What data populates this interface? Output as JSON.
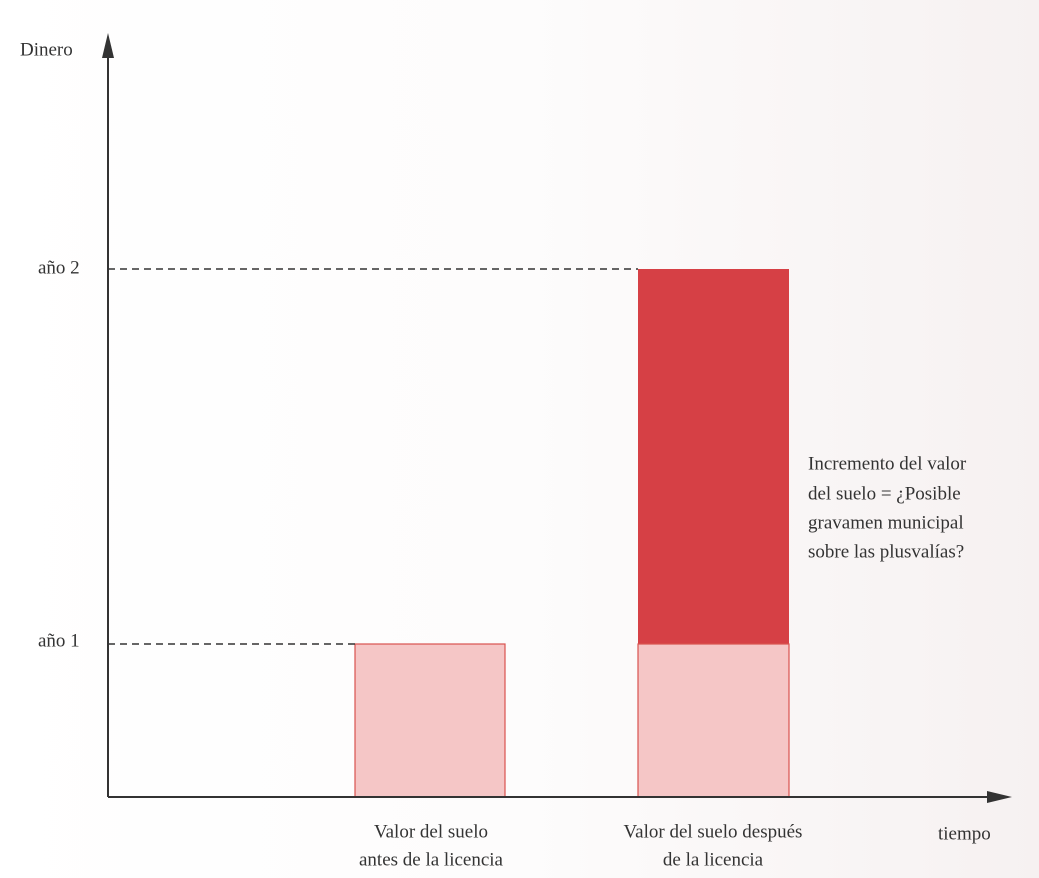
{
  "axis": {
    "y_label": "Dinero",
    "x_label": "tiempo",
    "levels": [
      "año 1",
      "año 2"
    ]
  },
  "bars": [
    {
      "label": [
        "Valor del suelo",
        "antes de la licencia"
      ]
    },
    {
      "label": [
        "Valor del suelo después",
        "de la licencia"
      ]
    }
  ],
  "annotation": [
    "Incremento del valor",
    "del suelo = ¿Posible",
    "gravamen municipal",
    "sobre las plusvalías?"
  ]
}
